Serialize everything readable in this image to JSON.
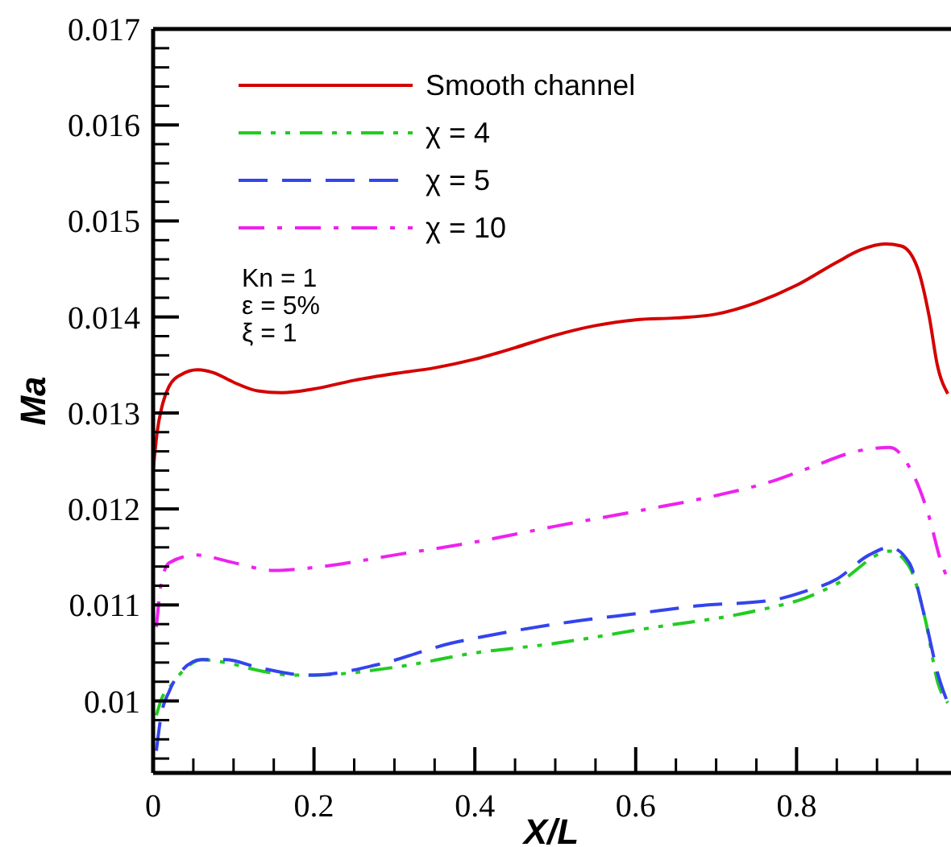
{
  "chart_data": {
    "type": "line",
    "xlabel": "X/L",
    "ylabel": "Ma",
    "xlim": [
      0,
      0.99
    ],
    "ylim": [
      0.00925,
      0.017
    ],
    "xticks": [
      0,
      {
        "value": 0.05,
        "label": null
      },
      0.2,
      {
        "value": 0.1,
        "label": null
      },
      {
        "value": 0.15,
        "label": null
      },
      {
        "value": 0.25,
        "label": null
      },
      {
        "value": 0.3,
        "label": null
      },
      {
        "value": 0.35,
        "label": null
      },
      0.4,
      {
        "value": 0.45,
        "label": null
      },
      {
        "value": 0.5,
        "label": null
      },
      {
        "value": 0.55,
        "label": null
      },
      0.6,
      {
        "value": 0.65,
        "label": null
      },
      {
        "value": 0.7,
        "label": null
      },
      {
        "value": 0.75,
        "label": null
      },
      0.8,
      {
        "value": 0.85,
        "label": null
      },
      {
        "value": 0.9,
        "label": null
      },
      {
        "value": 0.95,
        "label": null
      }
    ],
    "yticks": [
      {
        "value": 0.0094,
        "label": null
      },
      {
        "value": 0.0096,
        "label": null
      },
      {
        "value": 0.0098,
        "label": null
      },
      0.01,
      {
        "value": 0.0102,
        "label": null
      },
      {
        "value": 0.0104,
        "label": null
      },
      {
        "value": 0.0106,
        "label": null
      },
      {
        "value": 0.0108,
        "label": null
      },
      0.011,
      {
        "value": 0.0112,
        "label": null
      },
      {
        "value": 0.0114,
        "label": null
      },
      {
        "value": 0.0116,
        "label": null
      },
      {
        "value": 0.0118,
        "label": null
      },
      0.012,
      {
        "value": 0.0122,
        "label": null
      },
      {
        "value": 0.0124,
        "label": null
      },
      {
        "value": 0.0126,
        "label": null
      },
      {
        "value": 0.0128,
        "label": null
      },
      0.013,
      {
        "value": 0.0132,
        "label": null
      },
      {
        "value": 0.0134,
        "label": null
      },
      {
        "value": 0.0136,
        "label": null
      },
      {
        "value": 0.0138,
        "label": null
      },
      0.014,
      {
        "value": 0.0142,
        "label": null
      },
      {
        "value": 0.0144,
        "label": null
      },
      {
        "value": 0.0146,
        "label": null
      },
      {
        "value": 0.0148,
        "label": null
      },
      0.015,
      {
        "value": 0.0152,
        "label": null
      },
      {
        "value": 0.0154,
        "label": null
      },
      {
        "value": 0.0156,
        "label": null
      },
      {
        "value": 0.0158,
        "label": null
      },
      0.016,
      {
        "value": 0.0162,
        "label": null
      },
      {
        "value": 0.0164,
        "label": null
      },
      {
        "value": 0.0166,
        "label": null
      },
      {
        "value": 0.0168,
        "label": null
      },
      0.017
    ],
    "grid": false,
    "legend": "top left",
    "annotations": [
      "Kn = 1",
      "ε = 5%",
      "ξ = 1"
    ],
    "series": [
      {
        "name": "Smooth channel",
        "color": "#d40000",
        "line_style": "solid",
        "x": [
          0,
          0.005,
          0.012,
          0.02,
          0.035,
          0.055,
          0.075,
          0.1,
          0.13,
          0.16,
          0.2,
          0.25,
          0.3,
          0.35,
          0.4,
          0.45,
          0.5,
          0.55,
          0.6,
          0.65,
          0.7,
          0.75,
          0.8,
          0.85,
          0.88,
          0.91,
          0.93,
          0.95,
          0.965,
          0.975,
          0.988
        ],
        "values": [
          0.0124,
          0.0128,
          0.0131,
          0.01328,
          0.0134,
          0.01345,
          0.01342,
          0.01332,
          0.01323,
          0.01321,
          0.01325,
          0.01334,
          0.01341,
          0.01347,
          0.01356,
          0.01368,
          0.01381,
          0.01391,
          0.01397,
          0.01399,
          0.01403,
          0.01415,
          0.01433,
          0.01457,
          0.0147,
          0.01476,
          0.01474,
          0.01452,
          0.014,
          0.0135,
          0.0132
        ]
      },
      {
        "name": "χ = 4",
        "color": "#22cc22",
        "line_style": "dashdotdot",
        "x": [
          0.004,
          0.01,
          0.024,
          0.046,
          0.06,
          0.09,
          0.13,
          0.17,
          0.2,
          0.3,
          0.4,
          0.5,
          0.61,
          0.75,
          0.81,
          0.85,
          0.916,
          0.94,
          0.96,
          0.976,
          0.988
        ],
        "values": [
          0.00985,
          0.01001,
          0.01018,
          0.01038,
          0.01043,
          0.0104,
          0.01032,
          0.01027,
          0.01027,
          0.01035,
          0.0105,
          0.0106,
          0.01075,
          0.01094,
          0.01107,
          0.01122,
          0.01156,
          0.0114,
          0.01085,
          0.01018,
          0.00998
        ]
      },
      {
        "name": "χ = 5",
        "color": "#3344ee",
        "line_style": "dashed",
        "x": [
          0.004,
          0.01,
          0.02,
          0.034,
          0.06,
          0.09,
          0.13,
          0.19,
          0.2,
          0.28,
          0.37,
          0.41,
          0.5,
          0.61,
          0.676,
          0.77,
          0.81,
          0.85,
          0.89,
          0.916,
          0.94,
          0.96,
          0.976,
          0.988
        ],
        "values": [
          0.00948,
          0.00985,
          0.0101,
          0.0103,
          0.01043,
          0.01043,
          0.01035,
          0.01027,
          0.01027,
          0.01038,
          0.0106,
          0.01067,
          0.0108,
          0.01092,
          0.01099,
          0.01105,
          0.01114,
          0.01127,
          0.01152,
          0.0116,
          0.01144,
          0.01085,
          0.01027,
          0.00998
        ]
      },
      {
        "name": "χ = 10",
        "color": "#ee22ee",
        "line_style": "dashdot",
        "x": [
          0.004,
          0.01,
          0.02,
          0.054,
          0.1,
          0.15,
          0.2,
          0.3,
          0.41,
          0.5,
          0.61,
          0.7,
          0.77,
          0.81,
          0.88,
          0.916,
          0.94,
          0.964,
          0.98,
          0.988
        ],
        "values": [
          0.01077,
          0.01122,
          0.01144,
          0.01152,
          0.01144,
          0.01136,
          0.01139,
          0.01152,
          0.01167,
          0.01182,
          0.01199,
          0.01214,
          0.01229,
          0.01241,
          0.01261,
          0.01264,
          0.01244,
          0.01194,
          0.01144,
          0.01127
        ]
      }
    ]
  }
}
